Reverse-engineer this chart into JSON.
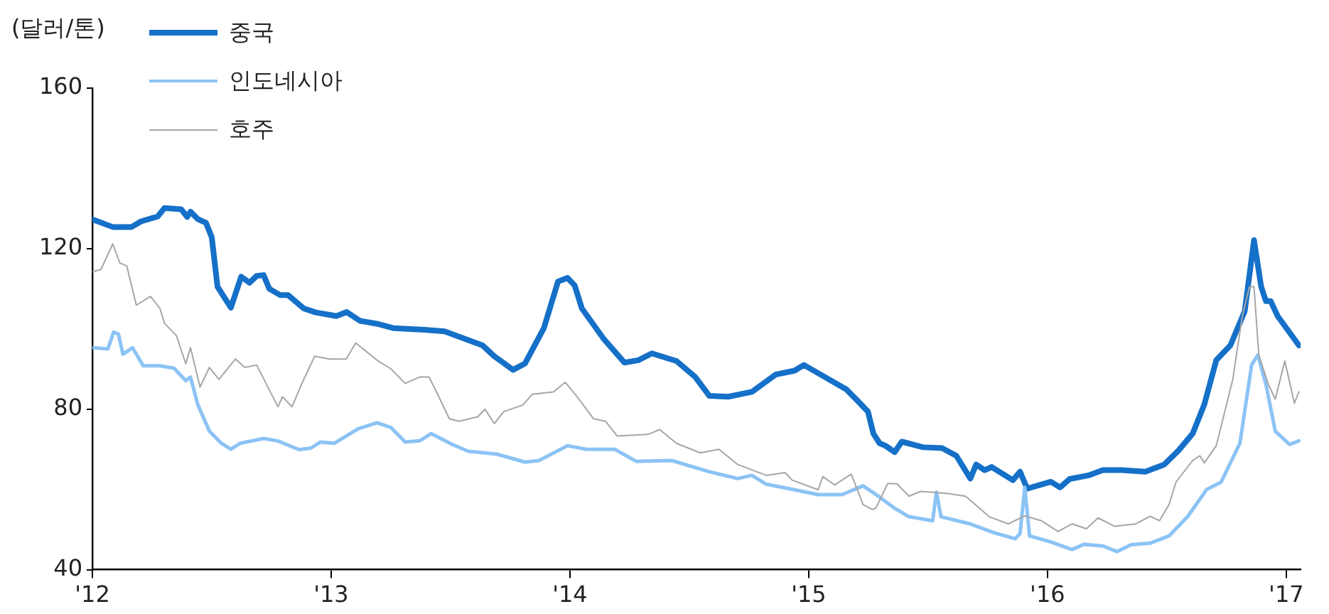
{
  "chart_data": {
    "type": "line",
    "ylabel": "(달러/톤)",
    "legend": "top left",
    "grid": false,
    "marker": "none",
    "line_style": "solid",
    "xlim": [
      2012,
      2017.06
    ],
    "xticks": [
      {
        "value": 2012,
        "label": "'12"
      },
      {
        "value": 2013,
        "label": "'13"
      },
      {
        "value": 2014,
        "label": "'14"
      },
      {
        "value": 2015,
        "label": "'15"
      },
      {
        "value": 2016,
        "label": "'16"
      },
      {
        "value": 2017,
        "label": "'17"
      }
    ],
    "ylim": [
      40,
      160
    ],
    "yticks": [
      40,
      80,
      120,
      160
    ],
    "series": [
      {
        "name": "중국",
        "color": "#1570c8",
        "x": [
          2012,
          2012.085,
          2012.164,
          2012.204,
          2012.273,
          2012.302,
          2012.372,
          2012.397,
          2012.411,
          2012.441,
          2012.476,
          2012.5,
          2012.524,
          2012.58,
          2012.623,
          2012.658,
          2012.688,
          2012.717,
          2012.741,
          2012.787,
          2012.82,
          2012.885,
          2012.935,
          2013.022,
          2013.065,
          2013.121,
          2013.19,
          2013.26,
          2013.389,
          2013.475,
          2013.634,
          2013.683,
          2013.762,
          2013.812,
          2013.891,
          2013.95,
          2013.99,
          2014.02,
          2014.05,
          2014.139,
          2014.228,
          2014.287,
          2014.343,
          2014.446,
          2014.525,
          2014.584,
          2014.663,
          2014.762,
          2014.861,
          2014.941,
          2014.98,
          2015.059,
          2015.158,
          2015.198,
          2015.248,
          2015.271,
          2015.297,
          2015.321,
          2015.36,
          2015.39,
          2015.479,
          2015.558,
          2015.618,
          2015.677,
          2015.701,
          2015.737,
          2015.766,
          2015.855,
          2015.885,
          2015.915,
          2016.014,
          2016.053,
          2016.093,
          2016.172,
          2016.232,
          2016.311,
          2016.41,
          2016.489,
          2016.549,
          2016.608,
          2016.657,
          2016.707,
          2016.766,
          2016.826,
          2016.865,
          2016.895,
          2016.915,
          2016.935,
          2016.964,
          2017.053
        ],
        "values": [
          127.3,
          125.4,
          125.4,
          126.8,
          128,
          130.1,
          129.8,
          127.9,
          129.2,
          127.4,
          126.4,
          122.8,
          110.5,
          105.3,
          113,
          111.5,
          113.2,
          113.4,
          110,
          108.4,
          108.4,
          105.1,
          104.1,
          103.2,
          104.2,
          102,
          101.3,
          100.2,
          99.8,
          99.4,
          95.9,
          93.2,
          89.8,
          91.4,
          100.2,
          111.8,
          112.7,
          110.8,
          105.1,
          97.7,
          91.6,
          92.2,
          93.9,
          92,
          88,
          83.3,
          83.1,
          84.3,
          88.6,
          89.6,
          91,
          88.3,
          84.9,
          82.5,
          79.4,
          73.9,
          71.5,
          70.9,
          69.3,
          71.9,
          70.5,
          70.3,
          68.4,
          62.7,
          66.2,
          64.8,
          65.6,
          62.3,
          64.4,
          60.2,
          61.9,
          60.5,
          62.6,
          63.5,
          64.8,
          64.8,
          64.4,
          66.2,
          69.7,
          73.9,
          81.2,
          92.2,
          95.9,
          104.4,
          122.1,
          110.5,
          106.9,
          106.9,
          103.2,
          95.9
        ]
      },
      {
        "name": "인도네시아",
        "color": "#8cc3f5",
        "x": [
          2012,
          2012.065,
          2012.089,
          2012.109,
          2012.128,
          2012.168,
          2012.213,
          2012.283,
          2012.342,
          2012.391,
          2012.411,
          2012.441,
          2012.49,
          2012.54,
          2012.58,
          2012.619,
          2012.717,
          2012.776,
          2012.866,
          2012.915,
          2012.955,
          2013.014,
          2013.113,
          2013.192,
          2013.251,
          2013.31,
          2013.37,
          2013.419,
          2013.508,
          2013.574,
          2013.693,
          2013.812,
          2013.871,
          2013.99,
          2014.069,
          2014.188,
          2014.277,
          2014.426,
          2014.584,
          2014.703,
          2014.762,
          2014.822,
          2014.941,
          2015.04,
          2015.139,
          2015.228,
          2015.297,
          2015.36,
          2015.42,
          2015.519,
          2015.535,
          2015.554,
          2015.677,
          2015.776,
          2015.865,
          2015.885,
          2015.905,
          2015.925,
          2016.014,
          2016.103,
          2016.152,
          2016.232,
          2016.291,
          2016.35,
          2016.43,
          2016.509,
          2016.588,
          2016.667,
          2016.727,
          2016.806,
          2016.855,
          2016.881,
          2016.915,
          2016.954,
          2017.014,
          2017.053
        ],
        "values": [
          95.3,
          95,
          99.2,
          98.7,
          93.7,
          95.3,
          90.8,
          90.8,
          90.2,
          87.1,
          88,
          81.2,
          74.5,
          71.5,
          70,
          71.5,
          72.7,
          72.1,
          69.9,
          70.3,
          71.8,
          71.5,
          75.1,
          76.6,
          75.4,
          71.8,
          72.1,
          73.9,
          71.2,
          69.5,
          68.8,
          66.8,
          67.2,
          70.9,
          70,
          70,
          67,
          67.2,
          64.4,
          62.7,
          63.5,
          61.3,
          59.9,
          58.7,
          58.7,
          60.9,
          58.1,
          55.3,
          53.2,
          52.2,
          59.3,
          53.2,
          51.4,
          49.2,
          47.7,
          49,
          60.5,
          48.4,
          46.9,
          45,
          46.3,
          45.9,
          44.5,
          46.2,
          46.6,
          48.4,
          53.3,
          60,
          61.8,
          71.5,
          91,
          93.5,
          86.2,
          74.5,
          71.2,
          72.1
        ]
      },
      {
        "name": "호주",
        "color": "#a6a6a6",
        "x": [
          2012,
          2012.036,
          2012.085,
          2012.115,
          2012.144,
          2012.184,
          2012.243,
          2012.283,
          2012.302,
          2012.352,
          2012.391,
          2012.411,
          2012.451,
          2012.49,
          2012.53,
          2012.599,
          2012.638,
          2012.688,
          2012.777,
          2012.796,
          2012.836,
          2012.875,
          2012.931,
          2012.994,
          2013.063,
          2013.103,
          2013.192,
          2013.251,
          2013.31,
          2013.37,
          2013.41,
          2013.436,
          2013.495,
          2013.535,
          2013.614,
          2013.644,
          2013.683,
          2013.723,
          2013.802,
          2013.842,
          2013.931,
          2013.98,
          2014.03,
          2014.099,
          2014.149,
          2014.198,
          2014.327,
          2014.376,
          2014.446,
          2014.545,
          2014.624,
          2014.703,
          2014.822,
          2014.901,
          2014.931,
          2015.04,
          2015.059,
          2015.109,
          2015.178,
          2015.228,
          2015.267,
          2015.281,
          2015.331,
          2015.37,
          2015.42,
          2015.469,
          2015.578,
          2015.657,
          2015.756,
          2015.836,
          2015.905,
          2015.974,
          2016.044,
          2016.103,
          2016.163,
          2016.212,
          2016.281,
          2016.37,
          2016.43,
          2016.469,
          2016.509,
          2016.538,
          2016.608,
          2016.638,
          2016.657,
          2016.707,
          2016.776,
          2016.816,
          2016.846,
          2016.865,
          2016.885,
          2016.925,
          2016.954,
          2016.994,
          2017.034,
          2017.053
        ],
        "values": [
          114.2,
          114.8,
          121.2,
          116.4,
          115.7,
          105.9,
          108.1,
          105.1,
          101.4,
          98.3,
          91.3,
          95.3,
          85.5,
          90.4,
          87.4,
          92.5,
          90.4,
          91,
          80.6,
          83.1,
          80.6,
          86.1,
          93.2,
          92.5,
          92.5,
          96.5,
          92.2,
          90,
          86.4,
          88,
          88,
          84.9,
          77.6,
          77,
          78.1,
          80,
          76.4,
          79.4,
          81,
          83.7,
          84.3,
          86.7,
          83.1,
          77.6,
          77,
          73.3,
          73.7,
          74.9,
          71.5,
          69.1,
          70,
          66.2,
          63.5,
          64.2,
          62.3,
          59.9,
          63.2,
          61.1,
          63.8,
          56.2,
          55,
          55.3,
          61.5,
          61.4,
          58.3,
          59.5,
          59,
          58.3,
          53.2,
          51.4,
          53.4,
          52.2,
          49.5,
          51.4,
          50.2,
          52.9,
          50.8,
          51.4,
          53.3,
          52.2,
          56.2,
          61.8,
          67.2,
          68.4,
          66.6,
          70.9,
          87.4,
          103.2,
          110.5,
          110.5,
          93.5,
          86.2,
          82.5,
          92,
          81.5,
          84.3
        ]
      }
    ]
  }
}
